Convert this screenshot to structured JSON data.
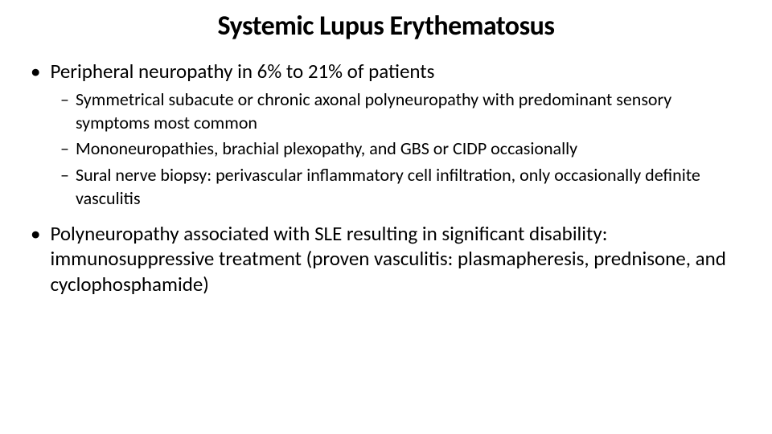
{
  "slide": {
    "title": "Systemic Lupus Erythematosus",
    "title_fontsize": 34,
    "title_fontweight": 700,
    "background_color": "#ffffff",
    "text_color": "#000000",
    "bullets": {
      "level1_marker": "•",
      "level2_marker": "–",
      "item1": {
        "text": "Peripheral neuropathy in 6% to 21% of patients",
        "fontsize": 25,
        "sub": {
          "s1": "Symmetrical subacute or chronic axonal polyneuropathy with predominant sensory symptoms most common",
          "s2": "Mononeuropathies, brachial plexopathy, and GBS or CIDP occasionally",
          "s3": "Sural nerve biopsy: perivascular inflammatory cell infiltration, only occasionally definite vasculitis",
          "fontsize": 22
        }
      },
      "item2": {
        "text": "Polyneuropathy associated with SLE resulting in significant disability: immunosuppressive treatment (proven vasculitis: plasmapheresis, prednisone, and cyclophosphamide)",
        "fontsize": 25
      }
    }
  }
}
